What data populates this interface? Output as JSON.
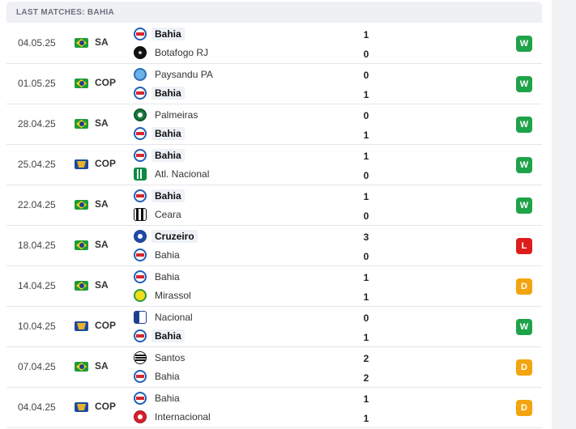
{
  "header": {
    "title": "LAST MATCHES: BAHIA"
  },
  "matches": [
    {
      "date": "04.05.25",
      "country": "brazil-flag",
      "competition": "SA",
      "home": {
        "name": "Bahia",
        "crest": "bahia-crest",
        "score": "1",
        "highlight": true
      },
      "away": {
        "name": "Botafogo RJ",
        "crest": "botafogo-crest",
        "score": "0",
        "highlight": false
      },
      "result": "W"
    },
    {
      "date": "01.05.25",
      "country": "brazil-flag",
      "competition": "COP",
      "home": {
        "name": "Paysandu PA",
        "crest": "paysandu-crest",
        "score": "0",
        "highlight": false
      },
      "away": {
        "name": "Bahia",
        "crest": "bahia-crest",
        "score": "1",
        "highlight": true
      },
      "result": "W"
    },
    {
      "date": "28.04.25",
      "country": "brazil-flag",
      "competition": "SA",
      "home": {
        "name": "Palmeiras",
        "crest": "palmeiras-crest",
        "score": "0",
        "highlight": false
      },
      "away": {
        "name": "Bahia",
        "crest": "bahia-crest",
        "score": "1",
        "highlight": true
      },
      "result": "W"
    },
    {
      "date": "25.04.25",
      "country": "south-america-flag",
      "competition": "COP",
      "home": {
        "name": "Bahia",
        "crest": "bahia-crest",
        "score": "1",
        "highlight": true
      },
      "away": {
        "name": "Atl. Nacional",
        "crest": "atl-nacional-crest",
        "score": "0",
        "highlight": false
      },
      "result": "W"
    },
    {
      "date": "22.04.25",
      "country": "brazil-flag",
      "competition": "SA",
      "home": {
        "name": "Bahia",
        "crest": "bahia-crest",
        "score": "1",
        "highlight": true
      },
      "away": {
        "name": "Ceara",
        "crest": "ceara-crest",
        "score": "0",
        "highlight": false
      },
      "result": "W"
    },
    {
      "date": "18.04.25",
      "country": "brazil-flag",
      "competition": "SA",
      "home": {
        "name": "Cruzeiro",
        "crest": "cruzeiro-crest",
        "score": "3",
        "highlight": true
      },
      "away": {
        "name": "Bahia",
        "crest": "bahia-crest",
        "score": "0",
        "highlight": false
      },
      "result": "L"
    },
    {
      "date": "14.04.25",
      "country": "brazil-flag",
      "competition": "SA",
      "home": {
        "name": "Bahia",
        "crest": "bahia-crest",
        "score": "1",
        "highlight": false
      },
      "away": {
        "name": "Mirassol",
        "crest": "mirassol-crest",
        "score": "1",
        "highlight": false
      },
      "result": "D"
    },
    {
      "date": "10.04.25",
      "country": "south-america-flag",
      "competition": "COP",
      "home": {
        "name": "Nacional",
        "crest": "nacional-crest",
        "score": "0",
        "highlight": false
      },
      "away": {
        "name": "Bahia",
        "crest": "bahia-crest",
        "score": "1",
        "highlight": true
      },
      "result": "W"
    },
    {
      "date": "07.04.25",
      "country": "brazil-flag",
      "competition": "SA",
      "home": {
        "name": "Santos",
        "crest": "santos-crest",
        "score": "2",
        "highlight": false
      },
      "away": {
        "name": "Bahia",
        "crest": "bahia-crest",
        "score": "2",
        "highlight": false
      },
      "result": "D"
    },
    {
      "date": "04.04.25",
      "country": "south-america-flag",
      "competition": "COP",
      "home": {
        "name": "Bahia",
        "crest": "bahia-crest",
        "score": "1",
        "highlight": false
      },
      "away": {
        "name": "Internacional",
        "crest": "internacional-crest",
        "score": "1",
        "highlight": false
      },
      "result": "D"
    }
  ],
  "colors": {
    "win": "#1fa34a",
    "loss": "#dd1d1d",
    "draw": "#f3a40f",
    "header_bg": "#eef0f3"
  }
}
